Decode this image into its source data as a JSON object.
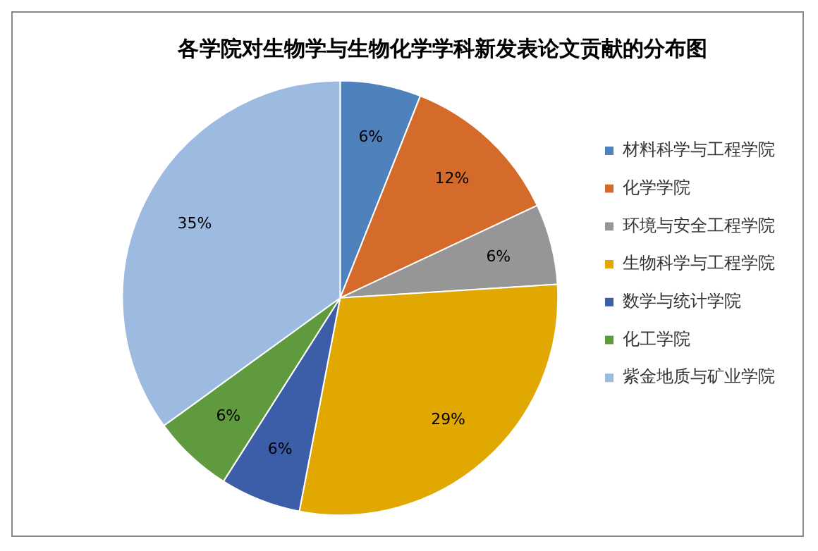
{
  "chart_data": {
    "type": "pie",
    "title": "各学院对生物学与生物化学学科新发表论文贡献的分布图",
    "categories": [
      "材料科学与工程学院",
      "化学学院",
      "环境与安全工程学院",
      "生物科学与工程学院",
      "数学与统计学院",
      "化工学院",
      "紫金地质与矿业学院"
    ],
    "values": [
      6,
      12,
      6,
      29,
      6,
      6,
      35
    ],
    "colors": [
      "#4f81bd",
      "#d46b2b",
      "#969696",
      "#e0a800",
      "#3c5ea8",
      "#5f9a3e",
      "#9dbbe0"
    ],
    "value_labels": [
      "6%",
      "12%",
      "6%",
      "29%",
      "6%",
      "6%",
      "35%"
    ],
    "legend": "right"
  }
}
